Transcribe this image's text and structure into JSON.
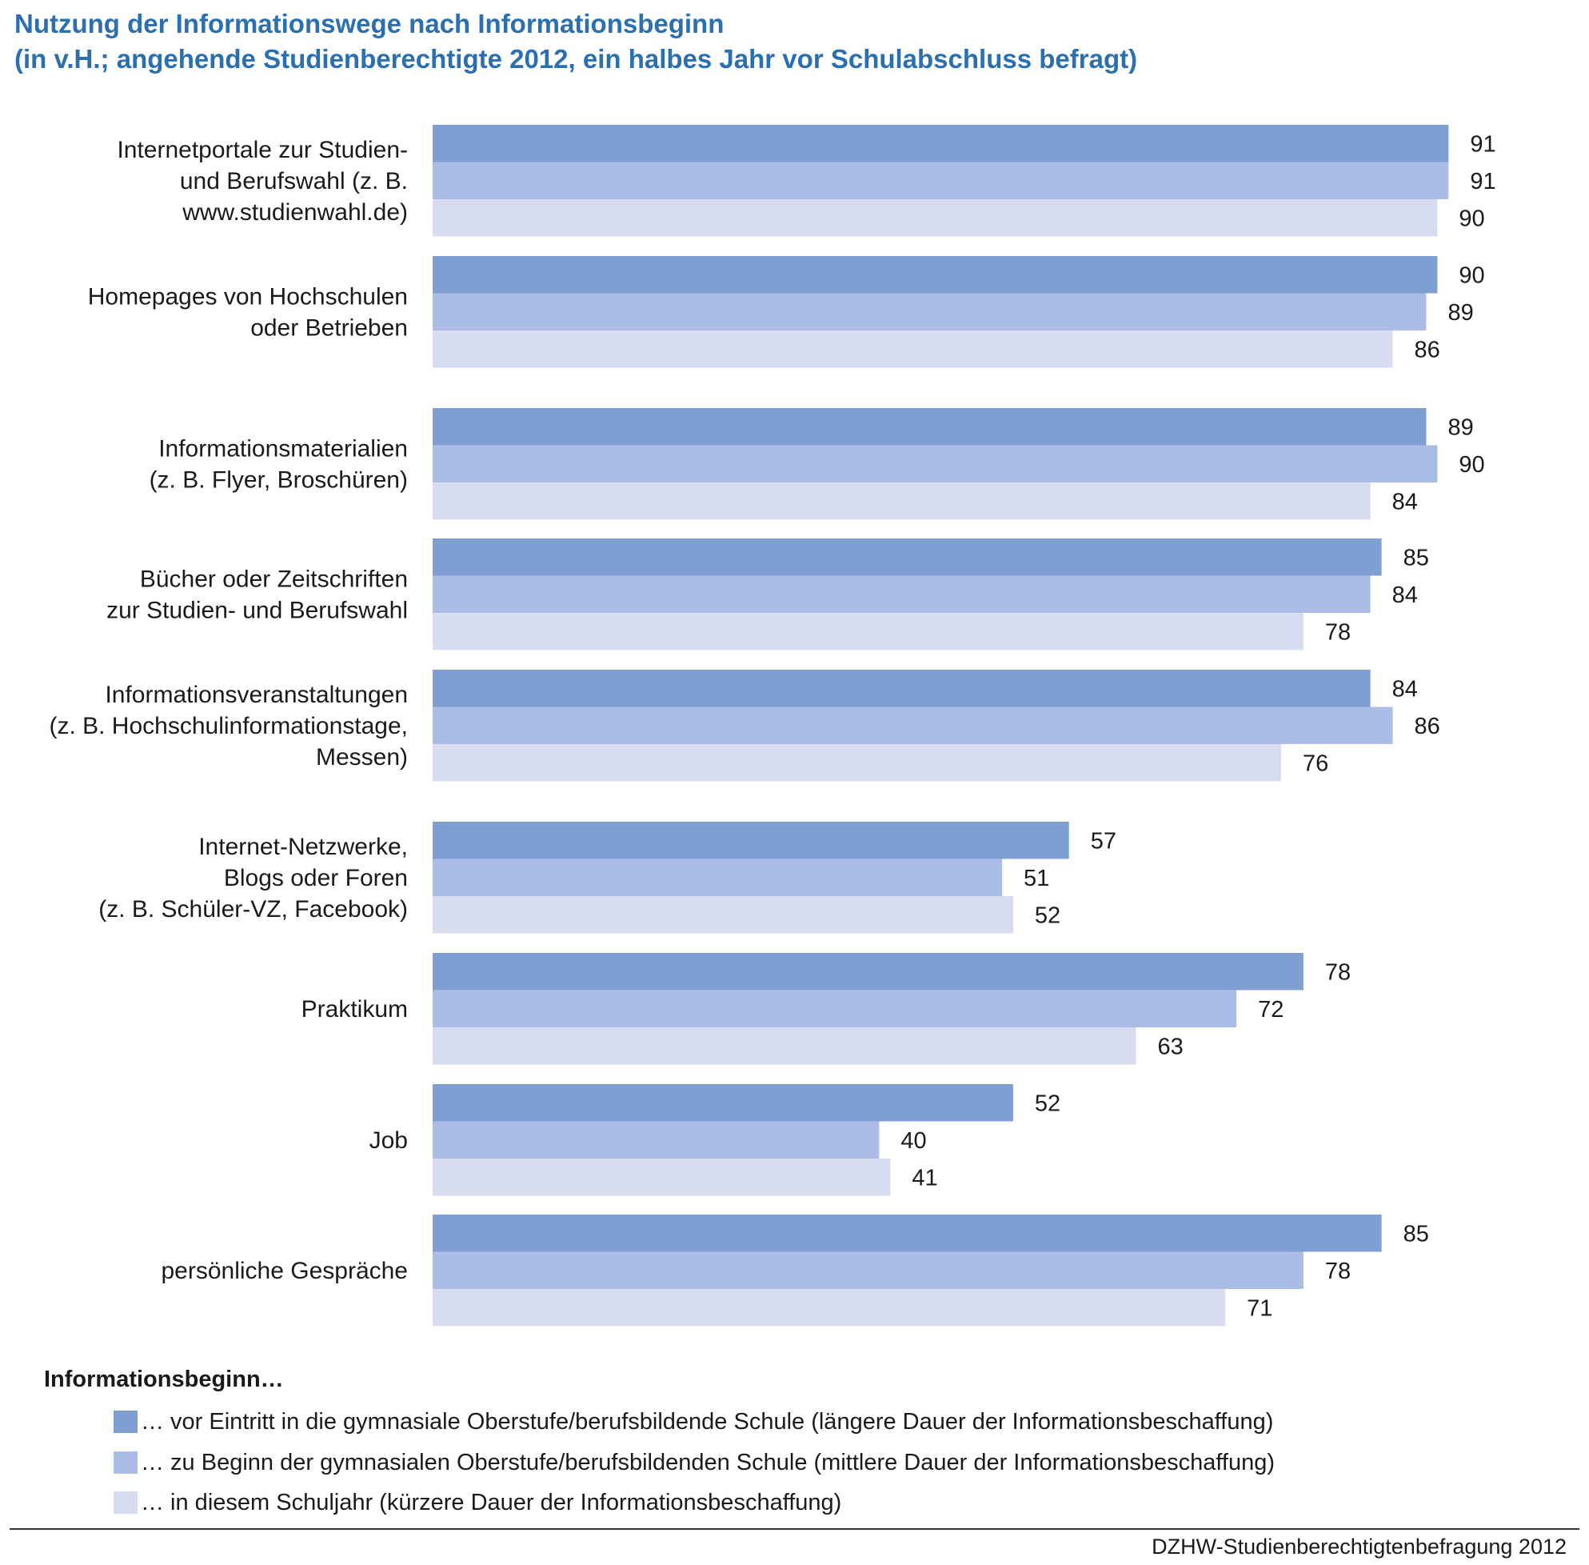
{
  "title_line1": "Nutzung der Informationswege nach Informationsbeginn",
  "title_line2": "(in v.H.; angehende Studienberechtigte 2012, ein halbes Jahr vor Schulabschluss befragt)",
  "colors": {
    "title": "#2a6fb0",
    "series": [
      "#7f9fd3",
      "#abbde6",
      "#d7dcf1"
    ]
  },
  "chart_data": {
    "type": "bar",
    "orientation": "horizontal",
    "categories": [
      [
        "Internetportale zur Studien-",
        "und Berufswahl (z. B.",
        "www.studienwahl.de)"
      ],
      [
        "Homepages von Hochschulen",
        "oder Betrieben"
      ],
      [
        "Informationsmaterialien",
        "(z. B. Flyer, Broschüren)"
      ],
      [
        "Bücher oder Zeitschriften",
        "zur Studien- und Berufswahl"
      ],
      [
        "Informationsveranstaltungen",
        "(z. B. Hochschulinformationstage,",
        "Messen)"
      ],
      [
        "Internet-Netzwerke,",
        "Blogs oder Foren",
        "(z. B. Schüler-VZ, Facebook)"
      ],
      [
        "Praktikum"
      ],
      [
        "Job"
      ],
      [
        "persönliche Gespräche"
      ]
    ],
    "series": [
      {
        "name": "… vor Eintritt in die gymnasiale Oberstufe/berufsbildende Schule (längere Dauer der Informationsbeschaffung)",
        "values": [
          91,
          90,
          89,
          85,
          84,
          57,
          78,
          52,
          85
        ]
      },
      {
        "name": "… zu Beginn der gymnasialen Oberstufe/berufsbildenden Schule (mittlere Dauer der Informationsbeschaffung)",
        "values": [
          91,
          89,
          90,
          84,
          86,
          51,
          72,
          40,
          78
        ]
      },
      {
        "name": "… in diesem Schuljahr (kürzere Dauer der Informationsbeschaffung)",
        "values": [
          90,
          86,
          84,
          78,
          76,
          52,
          63,
          41,
          71
        ]
      }
    ],
    "xlim": [
      0,
      100
    ],
    "grid": false,
    "legend_title": "Informationsbeginn…",
    "legend_position": "bottom-left"
  },
  "source": "DZHW-Studienberechtigtenbefragung 2012"
}
